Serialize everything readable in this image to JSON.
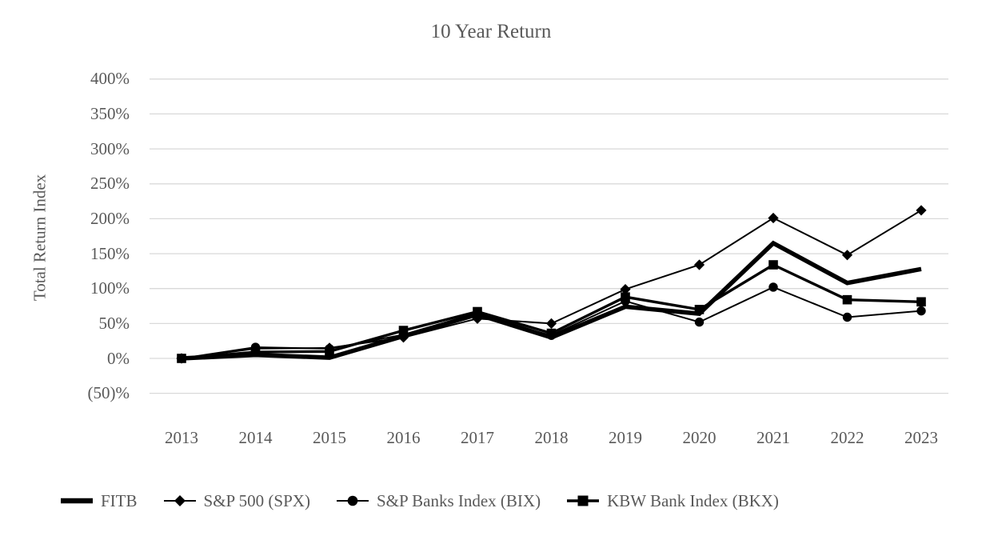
{
  "chart": {
    "colors": {
      "text": "#595959",
      "grid": "#d9d9d9",
      "series": "#000000"
    }
  },
  "chart_data": {
    "type": "line",
    "title": "10 Year Return",
    "xlabel": "",
    "ylabel": "Total Return Index",
    "categories": [
      "2013",
      "2014",
      "2015",
      "2016",
      "2017",
      "2018",
      "2019",
      "2020",
      "2021",
      "2022",
      "2023"
    ],
    "y_tick_labels": [
      "400%",
      "350%",
      "300%",
      "250%",
      "200%",
      "150%",
      "100%",
      "50%",
      "0%",
      "(50)%"
    ],
    "y_tick_values": [
      400,
      350,
      300,
      250,
      200,
      150,
      100,
      50,
      0,
      -50
    ],
    "ylim": [
      -50,
      400
    ],
    "grid": true,
    "legend_position": "bottom",
    "series": [
      {
        "name": "FITB",
        "marker": "none",
        "line": "thick",
        "values": [
          0,
          5,
          1,
          32,
          63,
          30,
          74,
          64,
          165,
          108,
          128
        ]
      },
      {
        "name": "S&P 500 (SPX)",
        "marker": "diamond",
        "line": "thin",
        "values": [
          0,
          14,
          15,
          30,
          57,
          50,
          99,
          134,
          201,
          148,
          212
        ]
      },
      {
        "name": "S&P Banks Index (BIX)",
        "marker": "circle",
        "line": "thin",
        "values": [
          0,
          16,
          14,
          34,
          61,
          33,
          82,
          52,
          102,
          59,
          68
        ]
      },
      {
        "name": "KBW Bank Index (BKX)",
        "marker": "square",
        "line": "medium",
        "values": [
          0,
          9,
          10,
          40,
          67,
          36,
          88,
          70,
          134,
          84,
          81
        ]
      }
    ]
  }
}
